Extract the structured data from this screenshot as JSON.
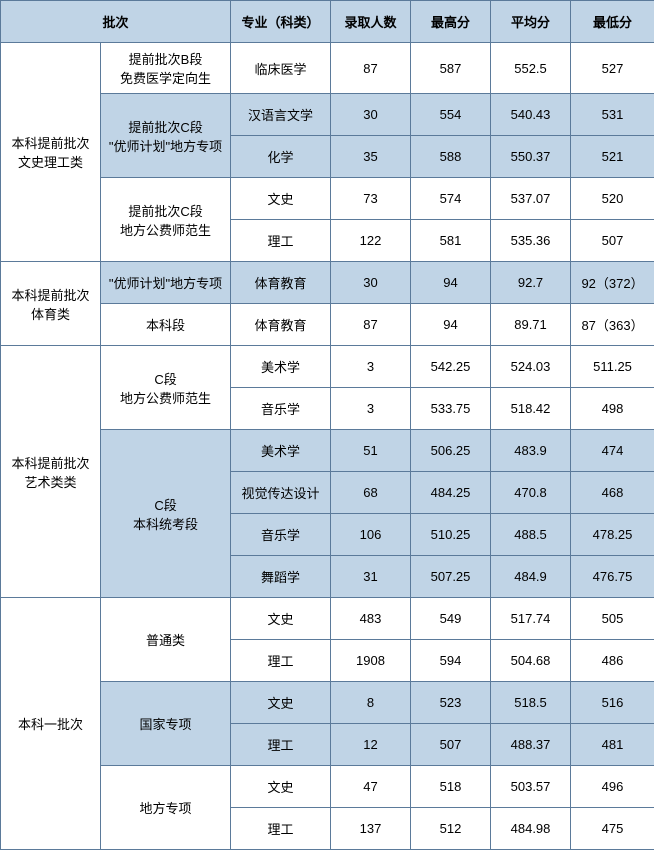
{
  "headers": {
    "batch": "批次",
    "major": "专业（科类）",
    "admitted": "录取人数",
    "max": "最高分",
    "avg": "平均分",
    "min": "最低分"
  },
  "groups": [
    {
      "name": "本科提前批次\n文史理工类",
      "subgroups": [
        {
          "name": "提前批次B段\n免费医学定向生",
          "shade": false,
          "rows": [
            {
              "major": "临床医学",
              "admitted": "87",
              "max": "587",
              "avg": "552.5",
              "min": "527"
            }
          ]
        },
        {
          "name": "提前批次C段\n\"优师计划\"地方专项",
          "shade": true,
          "rows": [
            {
              "major": "汉语言文学",
              "admitted": "30",
              "max": "554",
              "avg": "540.43",
              "min": "531"
            },
            {
              "major": "化学",
              "admitted": "35",
              "max": "588",
              "avg": "550.37",
              "min": "521"
            }
          ]
        },
        {
          "name": "提前批次C段\n地方公费师范生",
          "shade": false,
          "rows": [
            {
              "major": "文史",
              "admitted": "73",
              "max": "574",
              "avg": "537.07",
              "min": "520"
            },
            {
              "major": "理工",
              "admitted": "122",
              "max": "581",
              "avg": "535.36",
              "min": "507"
            }
          ]
        }
      ]
    },
    {
      "name": "本科提前批次\n体育类",
      "subgroups": [
        {
          "name": "\"优师计划\"地方专项",
          "shade": true,
          "rows": [
            {
              "major": "体育教育",
              "admitted": "30",
              "max": "94",
              "avg": "92.7",
              "min": "92（372）"
            }
          ]
        },
        {
          "name": "本科段",
          "shade": false,
          "rows": [
            {
              "major": "体育教育",
              "admitted": "87",
              "max": "94",
              "avg": "89.71",
              "min": "87（363）"
            }
          ]
        }
      ]
    },
    {
      "name": "本科提前批次\n艺术类类",
      "subgroups": [
        {
          "name": "C段\n地方公费师范生",
          "shade": false,
          "rows": [
            {
              "major": "美术学",
              "admitted": "3",
              "max": "542.25",
              "avg": "524.03",
              "min": "511.25"
            },
            {
              "major": "音乐学",
              "admitted": "3",
              "max": "533.75",
              "avg": "518.42",
              "min": "498"
            }
          ]
        },
        {
          "name": "C段\n本科统考段",
          "shade": true,
          "rows": [
            {
              "major": "美术学",
              "admitted": "51",
              "max": "506.25",
              "avg": "483.9",
              "min": "474"
            },
            {
              "major": "视觉传达设计",
              "admitted": "68",
              "max": "484.25",
              "avg": "470.8",
              "min": "468"
            },
            {
              "major": "音乐学",
              "admitted": "106",
              "max": "510.25",
              "avg": "488.5",
              "min": "478.25"
            },
            {
              "major": "舞蹈学",
              "admitted": "31",
              "max": "507.25",
              "avg": "484.9",
              "min": "476.75"
            }
          ]
        }
      ]
    },
    {
      "name": "本科一批次",
      "subgroups": [
        {
          "name": "普通类",
          "shade": false,
          "rows": [
            {
              "major": "文史",
              "admitted": "483",
              "max": "549",
              "avg": "517.74",
              "min": "505"
            },
            {
              "major": "理工",
              "admitted": "1908",
              "max": "594",
              "avg": "504.68",
              "min": "486"
            }
          ]
        },
        {
          "name": "国家专项",
          "shade": true,
          "rows": [
            {
              "major": "文史",
              "admitted": "8",
              "max": "523",
              "avg": "518.5",
              "min": "516"
            },
            {
              "major": "理工",
              "admitted": "12",
              "max": "507",
              "avg": "488.37",
              "min": "481"
            }
          ]
        },
        {
          "name": "地方专项",
          "shade": false,
          "rows": [
            {
              "major": "文史",
              "admitted": "47",
              "max": "518",
              "avg": "503.57",
              "min": "496"
            },
            {
              "major": "理工",
              "admitted": "137",
              "max": "512",
              "avg": "484.98",
              "min": "475"
            }
          ]
        }
      ]
    }
  ]
}
